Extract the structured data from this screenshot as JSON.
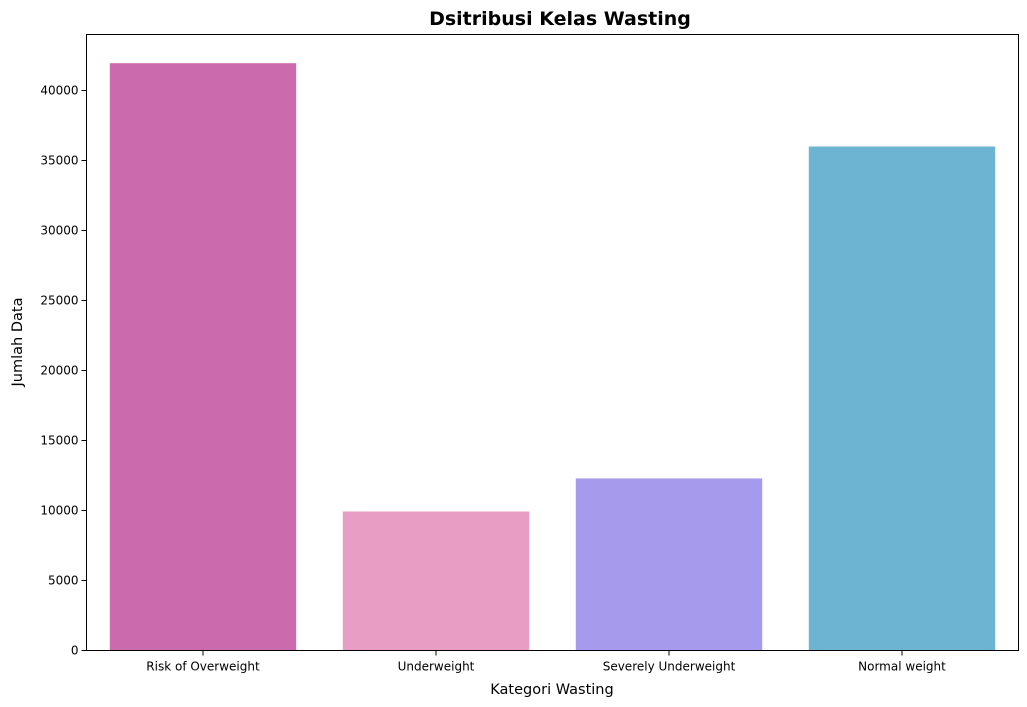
{
  "chart_data": {
    "type": "bar",
    "title": "Dsitribusi Kelas Wasting",
    "xlabel": "Kategori Wasting",
    "ylabel": "Jumlah Data",
    "categories": [
      "Risk of Overweight",
      "Underweight",
      "Severely Underweight",
      "Normal weight"
    ],
    "values": [
      41950,
      9930,
      12290,
      36000
    ],
    "colors": [
      "#cb6bad",
      "#e89dc4",
      "#a59aeb",
      "#6cb4d1"
    ],
    "ylim": [
      0,
      44000
    ],
    "yticks": [
      0,
      5000,
      10000,
      15000,
      20000,
      25000,
      30000,
      35000,
      40000
    ],
    "grid": false,
    "legend": "none"
  }
}
